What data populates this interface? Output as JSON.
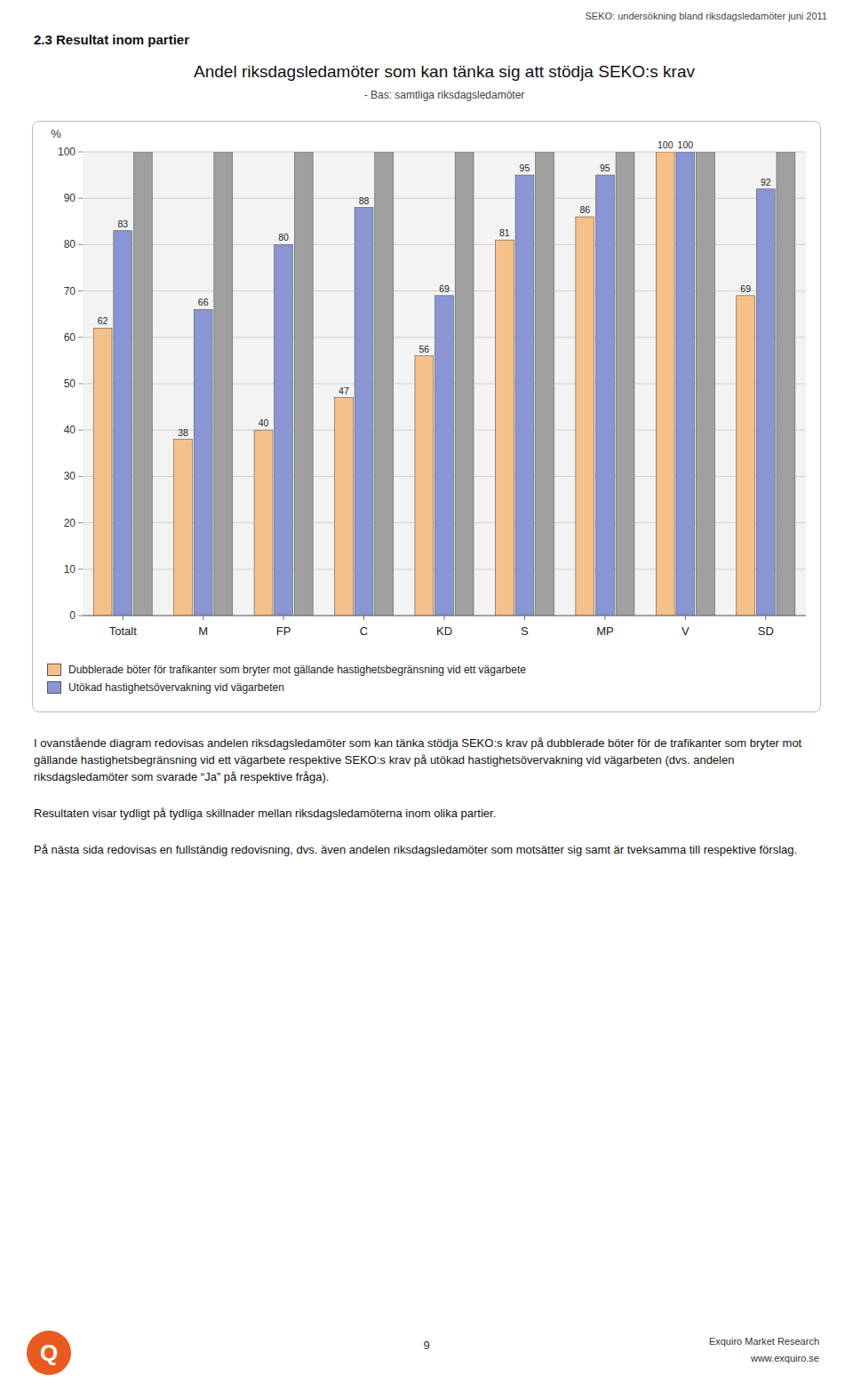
{
  "page": {
    "header_text": "SEKO: undersökning bland riksdagsledamöter juni 2011",
    "section_title": "2.3 Resultat inom partier",
    "body_text1": "I ovanstående diagram redovisas andelen riksdagsledamöter som kan tänka stödja SEKO:s krav på dubblerade böter för de trafikanter som bryter mot gällande hastighetsbegränsning vid ett vägarbete respektive SEKO:s krav på utökad hastighetsövervakning vid vägarbeten (dvs. andelen riksdagsledamöter som svarade “Ja” på respektive fråga).",
    "body_text2": "Resultaten visar tydligt på tydliga skillnader mellan riksdagsledamöterna inom olika partier.",
    "body_text3": "På nästa sida redovisas en fullständig redovisning, dvs. även andelen riksdagsledamöter som motsätter sig samt är tveksamma till respektive förslag.",
    "footer_center": "9",
    "footer_right1": "Exquiro Market Research",
    "footer_right2": "www.exquiro.se",
    "logo_text": "Q"
  },
  "chart_data": {
    "type": "bar",
    "title": "Andel riksdagsledamöter som kan tänka sig att stödja SEKO:s krav",
    "subtitle": "- Bas: samtliga riksdagsledamöter",
    "y_label": "%",
    "categories": [
      "Totalt",
      "M",
      "FP",
      "C",
      "KD",
      "S",
      "MP",
      "V",
      "SD"
    ],
    "series": [
      {
        "name": "Dubblerade böter för trafikanter som bryter mot gällande hastighetsbegränsning vid ett vägarbete",
        "color": "#F5C08A",
        "values": [
          62,
          38,
          40,
          47,
          56,
          81,
          86,
          100,
          69
        ]
      },
      {
        "name": "Utökad hastighetsövervakning vid vägarbeten",
        "color": "#8A95D4",
        "values": [
          83,
          66,
          80,
          88,
          69,
          95,
          95,
          100,
          92
        ]
      },
      {
        "color": "#A0A0A0",
        "values": [
          100,
          100,
          100,
          100,
          100,
          100,
          100,
          100,
          100
        ],
        "data_labels": false
      }
    ],
    "ylim": [
      0,
      100
    ],
    "yticks": [
      0,
      10,
      20,
      30,
      40,
      50,
      60,
      70,
      80,
      90,
      100
    ],
    "grid": true,
    "legend": "bottom",
    "data_labels": true
  }
}
